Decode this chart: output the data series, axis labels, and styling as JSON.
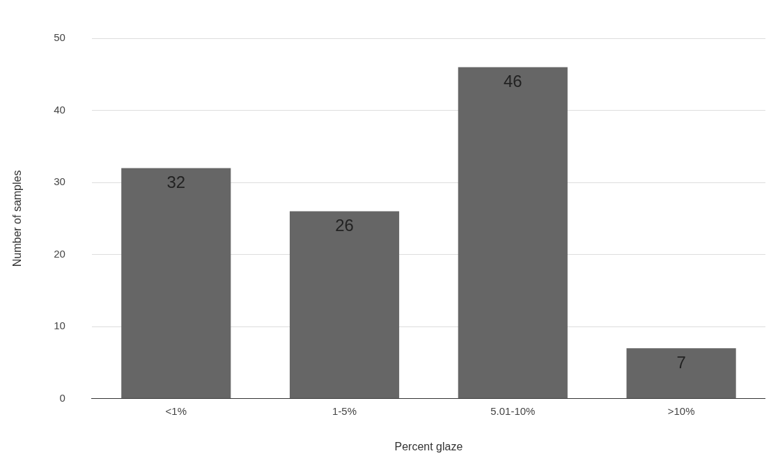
{
  "chart_data": {
    "type": "bar",
    "xlabel": "Percent glaze",
    "ylabel": "Number of samples",
    "categories": [
      "<1%",
      "1-5%",
      "5.01-10%",
      ">10%"
    ],
    "values": [
      32,
      26,
      46,
      7
    ],
    "color": "#666666",
    "ylim": [
      0,
      50
    ],
    "yticks": [
      0,
      10,
      20,
      30,
      40,
      50
    ],
    "grid": "y",
    "legend": false,
    "data_labels": true
  }
}
